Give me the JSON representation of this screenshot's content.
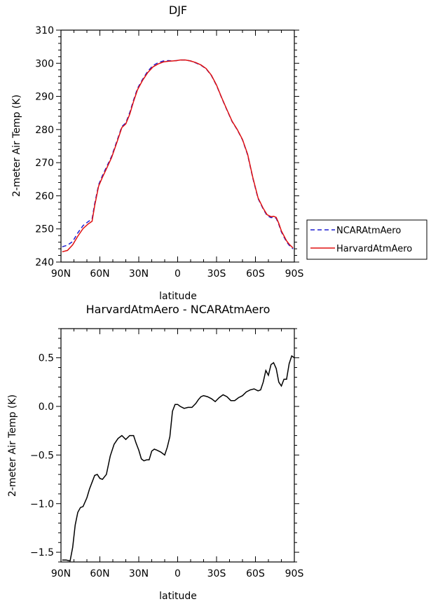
{
  "chart_data": [
    {
      "type": "line",
      "title": "DJF",
      "xlabel": "latitude",
      "ylabel": "2-meter Air Temp (K)",
      "xlim": [
        90,
        -90
      ],
      "ylim": [
        240,
        310
      ],
      "xticks": [
        90,
        60,
        30,
        0,
        -30,
        -60,
        -90
      ],
      "xtick_labels": [
        "90N",
        "60N",
        "30N",
        "0",
        "30S",
        "60S",
        "90S"
      ],
      "yticks": [
        240,
        250,
        260,
        270,
        280,
        290,
        300,
        310
      ],
      "ytick_labels": [
        "240",
        "250",
        "260",
        "270",
        "280",
        "290",
        "300",
        "310"
      ],
      "legend_position": "right",
      "series": [
        {
          "name": "NCARAtmAero",
          "color": "#1f1fd0",
          "dash": "dashed",
          "x": [
            89,
            85,
            81,
            77,
            73,
            69,
            66,
            64,
            61,
            58,
            55,
            51,
            47,
            43,
            40,
            37,
            34,
            31,
            27,
            23,
            19,
            15,
            11,
            7,
            4,
            1,
            -2,
            -6,
            -10,
            -14,
            -18,
            -22,
            -26,
            -30,
            -34,
            -38,
            -42,
            -46,
            -50,
            -54,
            -58,
            -62,
            -66,
            -69,
            -72,
            -74,
            -76,
            -78,
            -80,
            -82,
            -84,
            -86,
            -88,
            -89
          ],
          "values": [
            244.6,
            245.1,
            246.2,
            248.8,
            251.0,
            252.2,
            253.0,
            257.6,
            263.3,
            266.1,
            268.6,
            271.9,
            276.4,
            280.9,
            282.0,
            285.1,
            288.9,
            292.4,
            295.2,
            297.6,
            299.3,
            300.2,
            300.7,
            300.8,
            300.7,
            300.8,
            301.0,
            301.0,
            300.7,
            300.1,
            299.4,
            298.3,
            296.3,
            293.3,
            289.5,
            285.9,
            282.4,
            279.9,
            276.9,
            272.3,
            265.3,
            259.2,
            256.0,
            254.0,
            253.4,
            253.5,
            253.2,
            251.4,
            249.1,
            247.6,
            246.1,
            245.1,
            244.3,
            244.0
          ]
        },
        {
          "name": "HarvardAtmAero",
          "color": "#e01010",
          "dash": "solid",
          "x": [
            89,
            85,
            81,
            77,
            73,
            69,
            66,
            64,
            61,
            58,
            55,
            51,
            47,
            43,
            40,
            37,
            34,
            31,
            27,
            23,
            19,
            15,
            11,
            7,
            4,
            1,
            -2,
            -6,
            -10,
            -14,
            -18,
            -22,
            -26,
            -30,
            -34,
            -38,
            -42,
            -46,
            -50,
            -54,
            -58,
            -62,
            -66,
            -69,
            -72,
            -74,
            -76,
            -78,
            -80,
            -82,
            -84,
            -86,
            -88,
            -89
          ],
          "values": [
            243.1,
            243.5,
            245.2,
            247.8,
            250.1,
            251.5,
            252.3,
            257.0,
            262.9,
            265.6,
            268.1,
            271.5,
            276.0,
            280.6,
            281.7,
            284.6,
            288.5,
            292.0,
            294.9,
            297.2,
            298.9,
            299.8,
            300.4,
            300.6,
            300.7,
            300.8,
            301.0,
            301.0,
            300.7,
            300.2,
            299.5,
            298.4,
            296.4,
            293.4,
            289.6,
            286.0,
            282.5,
            280.0,
            277.0,
            272.5,
            265.5,
            259.4,
            256.2,
            254.3,
            253.7,
            253.8,
            253.5,
            251.7,
            249.4,
            247.9,
            246.4,
            245.4,
            244.6,
            244.3
          ]
        }
      ]
    },
    {
      "type": "line",
      "title": "HarvardAtmAero - NCARAtmAero",
      "xlabel": "latitude",
      "ylabel": "2-meter Air Temp (K)",
      "xlim": [
        90,
        -90
      ],
      "ylim": [
        -1.6,
        0.8
      ],
      "xticks": [
        90,
        60,
        30,
        0,
        -30,
        -60,
        -90
      ],
      "xtick_labels": [
        "90N",
        "60N",
        "30N",
        "0",
        "30S",
        "60S",
        "90S"
      ],
      "yticks": [
        -1.5,
        -1.0,
        -0.5,
        0.0,
        0.5
      ],
      "ytick_labels": [
        "−1.5",
        "−1.0",
        "−0.5",
        "0.0",
        "0.5"
      ],
      "series": [
        {
          "color": "#000000",
          "x": [
            89,
            86,
            83,
            81,
            79,
            77,
            75,
            73,
            70,
            68,
            66,
            64,
            62,
            60,
            58,
            55,
            52,
            49,
            46,
            43,
            40,
            37,
            34,
            32,
            30,
            28,
            26,
            24,
            22,
            20,
            18,
            16,
            13,
            10,
            8,
            6,
            4,
            2,
            0,
            -2,
            -5,
            -8,
            -11,
            -14,
            -16,
            -18,
            -20,
            -23,
            -26,
            -29,
            -32,
            -35,
            -38,
            -41,
            -44,
            -47,
            -50,
            -53,
            -56,
            -59,
            -62,
            -64,
            -66,
            -68,
            -70,
            -72,
            -74,
            -76,
            -78,
            -80,
            -82,
            -84,
            -86,
            -88,
            -90
          ],
          "values": [
            -1.58,
            -1.58,
            -1.59,
            -1.45,
            -1.22,
            -1.09,
            -1.04,
            -1.03,
            -0.94,
            -0.85,
            -0.78,
            -0.71,
            -0.7,
            -0.74,
            -0.75,
            -0.7,
            -0.51,
            -0.39,
            -0.33,
            -0.3,
            -0.34,
            -0.3,
            -0.3,
            -0.38,
            -0.45,
            -0.54,
            -0.56,
            -0.55,
            -0.55,
            -0.46,
            -0.44,
            -0.45,
            -0.47,
            -0.5,
            -0.42,
            -0.31,
            -0.05,
            0.02,
            0.02,
            0.0,
            -0.02,
            -0.01,
            -0.01,
            0.03,
            0.07,
            0.1,
            0.11,
            0.1,
            0.08,
            0.05,
            0.09,
            0.12,
            0.1,
            0.06,
            0.06,
            0.09,
            0.11,
            0.15,
            0.17,
            0.18,
            0.16,
            0.17,
            0.25,
            0.37,
            0.32,
            0.43,
            0.45,
            0.39,
            0.25,
            0.21,
            0.28,
            0.28,
            0.44,
            0.52,
            0.5
          ]
        }
      ]
    }
  ]
}
